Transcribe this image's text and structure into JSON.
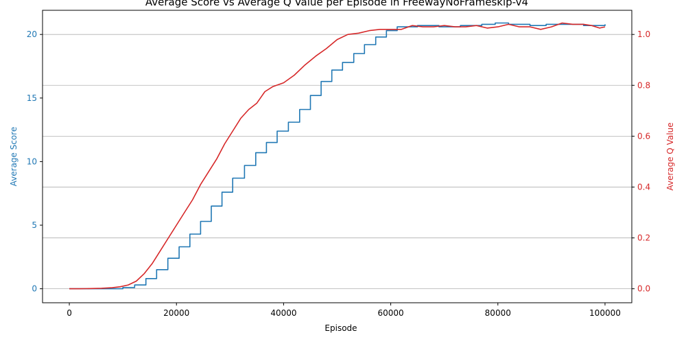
{
  "chart_data": {
    "type": "line",
    "title": "Average Score vs Average Q Value per Episode in FreewayNoFrameskip-v4",
    "xlabel": "Episode",
    "ylabel_left": "Average Score",
    "ylabel_right": "Average Q Value",
    "xlim": [
      -5000,
      105000
    ],
    "ylim_left": [
      -1.1,
      21.9
    ],
    "ylim_right": [
      -0.055,
      1.095
    ],
    "grid": "horizontal lines on right axis",
    "x_ticks": [
      0,
      20000,
      40000,
      60000,
      80000,
      100000
    ],
    "y_ticks_left": [
      0,
      5,
      10,
      15,
      20
    ],
    "y_ticks_right": [
      0.0,
      0.2,
      0.4,
      0.6,
      0.8,
      1.0
    ],
    "colors": {
      "score": "#1f77b4",
      "q": "#d62728",
      "grid": "#b0b0b0",
      "axis": "#000000"
    },
    "series": [
      {
        "axis": "left",
        "style": "step",
        "color": "#1f77b4",
        "x": [
          0,
          10000,
          12200,
          14300,
          16300,
          18400,
          20500,
          22500,
          24500,
          26500,
          28500,
          30500,
          32700,
          34800,
          36800,
          38800,
          40900,
          43000,
          45000,
          47000,
          49000,
          51000,
          53100,
          55100,
          57200,
          59200,
          61200,
          65000,
          69000,
          73000,
          77000,
          79500,
          82000,
          86000,
          89000,
          93000,
          96000,
          100000
        ],
        "values": [
          0.0,
          0.1,
          0.3,
          0.8,
          1.5,
          2.4,
          3.3,
          4.3,
          5.3,
          6.5,
          7.6,
          8.7,
          9.7,
          10.7,
          11.5,
          12.4,
          13.1,
          14.1,
          15.2,
          16.3,
          17.2,
          17.8,
          18.5,
          19.2,
          19.8,
          20.3,
          20.6,
          20.7,
          20.6,
          20.7,
          20.8,
          20.9,
          20.8,
          20.7,
          20.8,
          20.8,
          20.7,
          20.8
        ]
      },
      {
        "axis": "right",
        "style": "line",
        "color": "#d62728",
        "x": [
          0,
          2000,
          4000,
          6000,
          8000,
          9500,
          11000,
          12500,
          14000,
          15500,
          17000,
          18500,
          20000,
          21500,
          23000,
          24500,
          26000,
          27500,
          29000,
          30500,
          32000,
          33500,
          35000,
          36500,
          38000,
          40000,
          42000,
          44000,
          46000,
          48000,
          50000,
          52000,
          54000,
          56000,
          58000,
          60000,
          62000,
          64000,
          66000,
          68000,
          70000,
          72000,
          74000,
          76000,
          78000,
          80000,
          82000,
          84000,
          86000,
          88000,
          90000,
          92000,
          94000,
          96000,
          97500,
          99000,
          100000
        ],
        "values": [
          0.0,
          0.0,
          0.001,
          0.002,
          0.004,
          0.008,
          0.015,
          0.03,
          0.06,
          0.1,
          0.15,
          0.2,
          0.25,
          0.3,
          0.35,
          0.41,
          0.46,
          0.51,
          0.57,
          0.62,
          0.67,
          0.705,
          0.73,
          0.775,
          0.795,
          0.81,
          0.84,
          0.88,
          0.915,
          0.945,
          0.98,
          1.0,
          1.005,
          1.015,
          1.02,
          1.02,
          1.02,
          1.035,
          1.03,
          1.03,
          1.035,
          1.03,
          1.03,
          1.035,
          1.025,
          1.03,
          1.04,
          1.03,
          1.03,
          1.02,
          1.03,
          1.045,
          1.04,
          1.04,
          1.035,
          1.025,
          1.03
        ]
      }
    ]
  }
}
